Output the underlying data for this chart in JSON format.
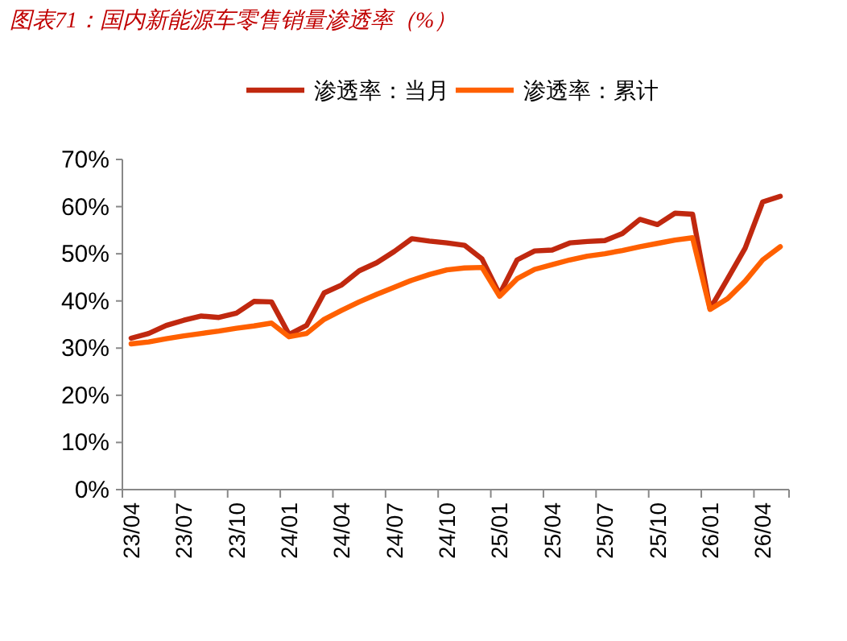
{
  "chart_data": {
    "type": "line",
    "title": "图表71：国内新能源车零售销量渗透率（%）",
    "categories": [
      "23/04",
      null,
      null,
      "23/07",
      null,
      null,
      "23/10",
      null,
      null,
      "24/01",
      null,
      null,
      "24/04",
      null,
      null,
      "24/07",
      null,
      null,
      "24/10",
      null,
      null,
      "25/01",
      null,
      null,
      "25/04",
      null,
      null,
      "25/07",
      null,
      null,
      "25/10",
      null,
      null,
      "26/01",
      null,
      null,
      "26/04",
      null
    ],
    "series": [
      {
        "name": "渗透率：当月",
        "color": "#c0280f",
        "values": [
          32.1,
          33.1,
          34.8,
          35.9,
          36.8,
          36.5,
          37.4,
          39.9,
          39.8,
          32.9,
          34.8,
          41.7,
          43.4,
          46.4,
          48.1,
          50.5,
          53.2,
          52.7,
          52.3,
          51.8,
          48.9,
          41.4,
          48.7,
          50.6,
          50.8,
          52.3,
          52.6,
          52.8,
          54.3,
          57.3,
          56.2,
          58.6,
          58.4,
          38.3,
          44.7,
          51.2,
          61.0,
          62.2
        ]
      },
      {
        "name": "渗透率：累计",
        "color": "#ff6000",
        "values": [
          30.9,
          31.3,
          32.0,
          32.6,
          33.1,
          33.6,
          34.2,
          34.7,
          35.3,
          32.4,
          33.1,
          36.1,
          38.0,
          39.8,
          41.4,
          42.9,
          44.4,
          45.6,
          46.6,
          47.0,
          47.1,
          41.0,
          44.7,
          46.7,
          47.7,
          48.7,
          49.5,
          50.0,
          50.7,
          51.5,
          52.2,
          52.9,
          53.4,
          38.2,
          40.5,
          44.2,
          48.7,
          51.5
        ]
      }
    ],
    "ylim": [
      0,
      70
    ],
    "yticks": [
      {
        "value": 0,
        "label": "0%"
      },
      {
        "value": 10,
        "label": "10%"
      },
      {
        "value": 20,
        "label": "20%"
      },
      {
        "value": 30,
        "label": "30%"
      },
      {
        "value": 40,
        "label": "40%"
      },
      {
        "value": 50,
        "label": "50%"
      },
      {
        "value": 60,
        "label": "60%"
      },
      {
        "value": 70,
        "label": "70%"
      }
    ],
    "legend": "top",
    "grid": false,
    "marker": "none",
    "line_style": "solid"
  }
}
